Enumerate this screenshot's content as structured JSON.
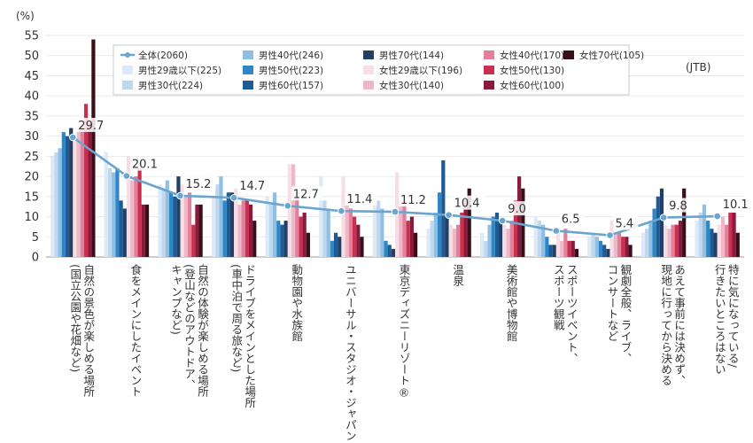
{
  "chart_data": {
    "type": "bar",
    "unit_label": "(%)",
    "source_label": "(JTB)",
    "ylim": [
      0,
      55
    ],
    "yticks": [
      0,
      5,
      10,
      15,
      20,
      25,
      30,
      35,
      40,
      45,
      50,
      55
    ],
    "categories": [
      [
        "自然の景色が楽しめる場所",
        "(国立公園や花畑など)"
      ],
      [
        "食をメインにしたイベント"
      ],
      [
        "自然の体験が楽しめる場所",
        "(登山などのアウトドア、",
        "キャンプなど)"
      ],
      [
        "ドライブをメインとした場所",
        "(車中泊で周る旅など)"
      ],
      [
        "動物園や水族館"
      ],
      [
        "ユニバーサル・スタジオ・ジャパン"
      ],
      [
        "東京ディズニーリゾート®"
      ],
      [
        "温泉"
      ],
      [
        "美術館や博物館"
      ],
      [
        "スポーツイベント、",
        "スポーツ観戦"
      ],
      [
        "観劇全般、ライブ、",
        "コンサートなど"
      ],
      [
        "あえて事前には決めず、",
        "現地に行ってから決める"
      ],
      [
        "特に気になっている/",
        "行きたいところはない"
      ]
    ],
    "line_series": {
      "name": "全体(2060)",
      "color": "#6aa5cf",
      "values": [
        29.7,
        20.1,
        15.2,
        14.7,
        12.7,
        11.4,
        11.2,
        10.4,
        9.0,
        6.5,
        5.4,
        9.8,
        10.1
      ],
      "labels": [
        "29.7",
        "20.1",
        "15.2",
        "14.7",
        "12.7",
        "11.4",
        "11.2",
        "10.4",
        "9.0",
        "6.5",
        "5.4",
        "9.8",
        "10.1"
      ]
    },
    "series": [
      {
        "name": "男性29歳以下(225)",
        "color": "#dbeaf6",
        "values": [
          25,
          26,
          18,
          15,
          15,
          20,
          15,
          7,
          6,
          10,
          5,
          6,
          9
        ]
      },
      {
        "name": "男性30代(224)",
        "color": "#bfd8ee",
        "values": [
          26,
          22,
          17,
          18,
          13,
          14,
          14,
          9,
          4,
          9,
          6,
          7,
          11
        ]
      },
      {
        "name": "男性40代(246)",
        "color": "#8fc0e4",
        "values": [
          27,
          21,
          19,
          20,
          16,
          12,
          12,
          11,
          8,
          8,
          5,
          9,
          13
        ]
      },
      {
        "name": "男性50代(223)",
        "color": "#2f86c6",
        "values": [
          31,
          22,
          16,
          14,
          9,
          4,
          4,
          16,
          10,
          5,
          4,
          12,
          9
        ]
      },
      {
        "name": "男性60代(157)",
        "color": "#1e5a93",
        "values": [
          30,
          14,
          15,
          16,
          8,
          6,
          3,
          24,
          11,
          3,
          3,
          15,
          7
        ]
      },
      {
        "name": "男性70代(144)",
        "color": "#243f66",
        "values": [
          32,
          12,
          20,
          16,
          9,
          5,
          2,
          10,
          9,
          3,
          2,
          17,
          6
        ]
      },
      {
        "name": "女性29歳以下(196)",
        "color": "#f7dde4",
        "values": [
          29,
          25,
          18,
          17,
          23,
          20,
          21,
          8,
          8,
          7,
          9,
          8,
          8
        ]
      },
      {
        "name": "女性30代(140)",
        "color": "#efb8c8",
        "values": [
          32,
          19,
          15,
          13,
          23,
          14,
          14,
          7,
          7,
          4,
          6,
          7,
          10
        ]
      },
      {
        "name": "女性40代(170)",
        "color": "#e47f9a",
        "values": [
          33,
          20,
          16,
          14,
          15,
          12,
          14,
          8,
          9,
          7,
          6,
          8,
          8
        ]
      },
      {
        "name": "女性50代(130)",
        "color": "#c9304f",
        "values": [
          38,
          22,
          8,
          14,
          10,
          10,
          9,
          11,
          14,
          4,
          5,
          8,
          11
        ]
      },
      {
        "name": "女性60代(100)",
        "color": "#8a1a3b",
        "values": [
          34,
          13,
          13,
          13,
          11,
          8,
          10,
          14,
          20,
          4,
          5,
          9,
          11
        ]
      },
      {
        "name": "女性70代(105)",
        "color": "#3a0f17",
        "values": [
          54,
          13,
          13,
          9,
          6,
          5,
          6,
          17,
          17,
          2,
          3,
          17,
          6
        ]
      }
    ],
    "legend_placement": "top",
    "grid": true
  }
}
